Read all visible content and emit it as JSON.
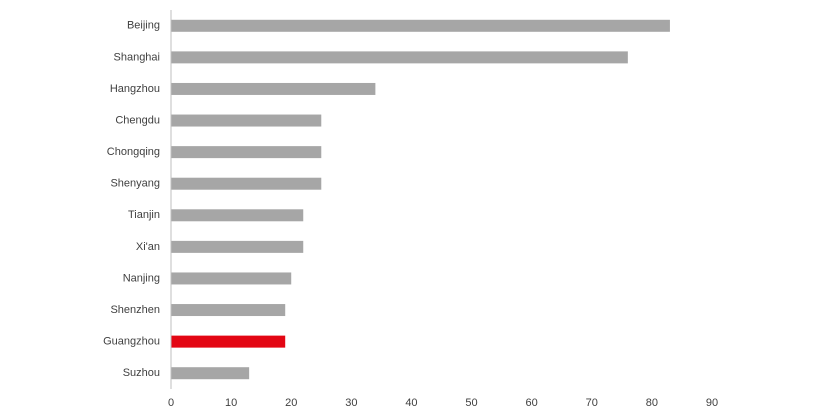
{
  "chart_data": {
    "type": "hbar",
    "categories": [
      "Beijing",
      "Shanghai",
      "Hangzhou",
      "Chengdu",
      "Chongqing",
      "Shenyang",
      "Tianjin",
      "Xi'an",
      "Nanjing",
      "Shenzhen",
      "Guangzhou",
      "Suzhou"
    ],
    "values": [
      83,
      76,
      34,
      25,
      25,
      25,
      22,
      22,
      20,
      19,
      19,
      13
    ],
    "colors": [
      "#a6a6a6",
      "#a6a6a6",
      "#a6a6a6",
      "#a6a6a6",
      "#a6a6a6",
      "#a6a6a6",
      "#a6a6a6",
      "#a6a6a6",
      "#a6a6a6",
      "#a6a6a6",
      "#e30613",
      "#a6a6a6"
    ],
    "xlim": [
      0,
      90
    ],
    "xticks": [
      0,
      10,
      20,
      30,
      40,
      50,
      60,
      70,
      80,
      90
    ],
    "grid": false
  }
}
